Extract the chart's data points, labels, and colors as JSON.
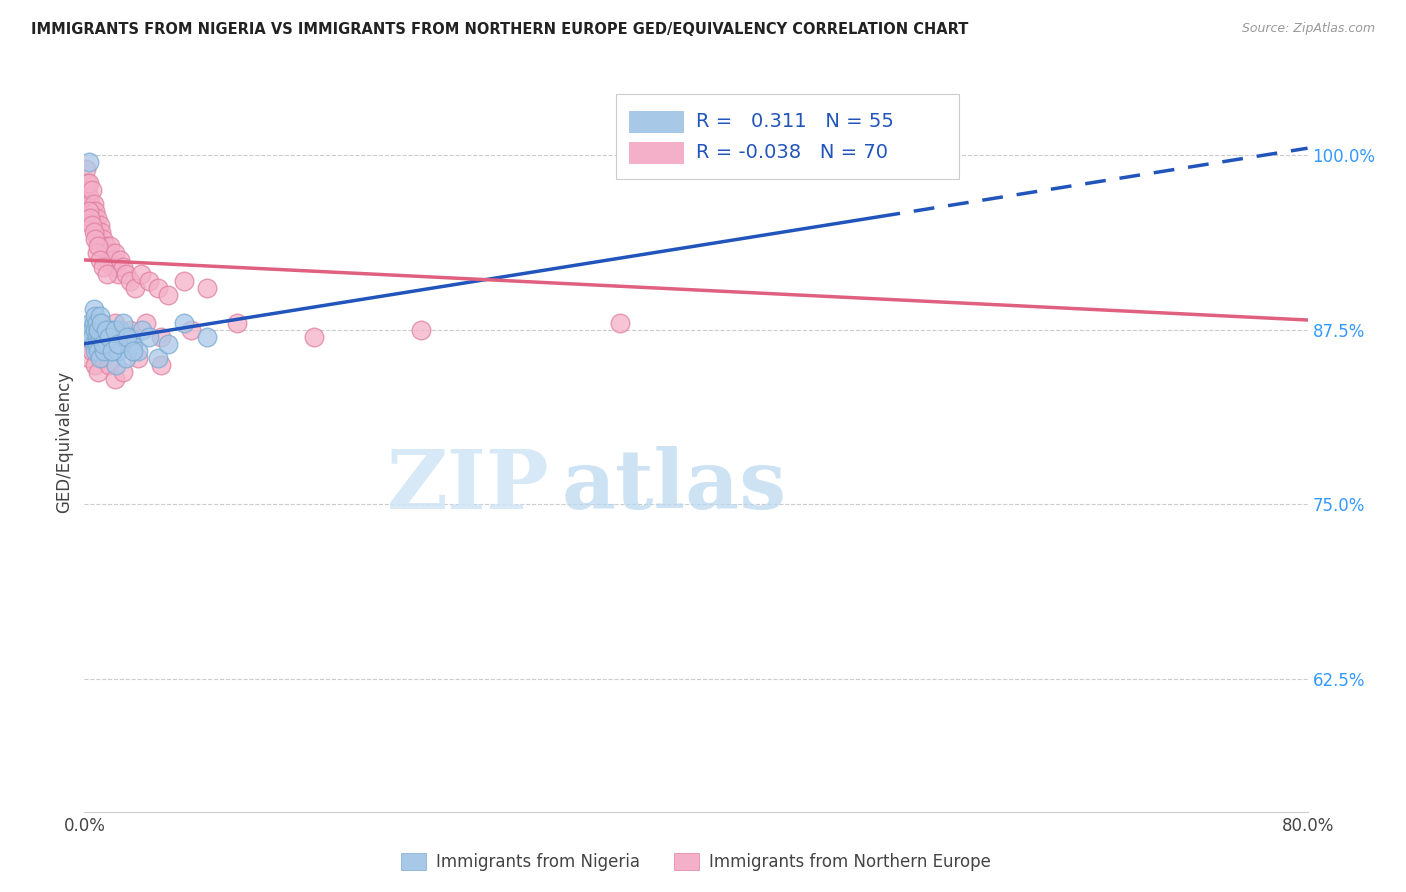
{
  "title": "IMMIGRANTS FROM NIGERIA VS IMMIGRANTS FROM NORTHERN EUROPE GED/EQUIVALENCY CORRELATION CHART",
  "source": "Source: ZipAtlas.com",
  "ylabel": "GED/Equivalency",
  "x_min": 0.0,
  "x_max": 0.8,
  "y_min": 0.53,
  "y_max": 1.06,
  "y_ticks": [
    0.625,
    0.75,
    0.875,
    1.0
  ],
  "y_tick_labels": [
    "62.5%",
    "75.0%",
    "87.5%",
    "100.0%"
  ],
  "nigeria_R": 0.311,
  "nigeria_N": 55,
  "northern_europe_R": -0.038,
  "northern_europe_N": 70,
  "nigeria_color": "#a8c8e8",
  "nigeria_edge_color": "#7aaad0",
  "northern_europe_color": "#f4b0c8",
  "northern_europe_edge_color": "#e080a0",
  "nigeria_trend_color": "#2255bb",
  "northern_europe_trend_color": "#e06080",
  "legend_label_nigeria": "Immigrants from Nigeria",
  "legend_label_northern": "Immigrants from Northern Europe",
  "nigeria_trend_x0": 0.0,
  "nigeria_trend_y0": 0.865,
  "nigeria_trend_x1": 0.8,
  "nigeria_trend_y1": 1.005,
  "northern_trend_x0": 0.0,
  "northern_trend_y0": 0.925,
  "northern_trend_x1": 0.8,
  "northern_trend_y1": 0.882,
  "nigeria_x": [
    0.002,
    0.003,
    0.004,
    0.005,
    0.005,
    0.006,
    0.006,
    0.007,
    0.007,
    0.008,
    0.008,
    0.009,
    0.009,
    0.01,
    0.01,
    0.011,
    0.012,
    0.013,
    0.014,
    0.015,
    0.016,
    0.017,
    0.018,
    0.019,
    0.02,
    0.021,
    0.022,
    0.023,
    0.024,
    0.025,
    0.027,
    0.03,
    0.032,
    0.035,
    0.038,
    0.042,
    0.048,
    0.055,
    0.065,
    0.08,
    0.006,
    0.007,
    0.008,
    0.009,
    0.01,
    0.011,
    0.012,
    0.014,
    0.016,
    0.018,
    0.02,
    0.022,
    0.025,
    0.028,
    0.032
  ],
  "nigeria_y": [
    0.87,
    0.995,
    0.88,
    0.875,
    0.87,
    0.865,
    0.88,
    0.875,
    0.86,
    0.87,
    0.865,
    0.875,
    0.86,
    0.87,
    0.855,
    0.88,
    0.87,
    0.86,
    0.875,
    0.865,
    0.87,
    0.875,
    0.865,
    0.86,
    0.875,
    0.85,
    0.86,
    0.875,
    0.865,
    0.87,
    0.855,
    0.87,
    0.865,
    0.86,
    0.875,
    0.87,
    0.855,
    0.865,
    0.88,
    0.87,
    0.89,
    0.885,
    0.88,
    0.875,
    0.885,
    0.88,
    0.865,
    0.875,
    0.87,
    0.86,
    0.875,
    0.865,
    0.88,
    0.87,
    0.86
  ],
  "northern_x": [
    0.001,
    0.002,
    0.002,
    0.003,
    0.003,
    0.004,
    0.005,
    0.005,
    0.006,
    0.006,
    0.007,
    0.007,
    0.008,
    0.008,
    0.009,
    0.01,
    0.01,
    0.011,
    0.012,
    0.013,
    0.014,
    0.015,
    0.016,
    0.017,
    0.018,
    0.019,
    0.02,
    0.021,
    0.022,
    0.023,
    0.025,
    0.027,
    0.03,
    0.033,
    0.037,
    0.042,
    0.048,
    0.055,
    0.065,
    0.08,
    0.003,
    0.004,
    0.005,
    0.006,
    0.007,
    0.008,
    0.009,
    0.01,
    0.012,
    0.015,
    0.02,
    0.025,
    0.03,
    0.04,
    0.05,
    0.07,
    0.1,
    0.15,
    0.22,
    0.35,
    0.003,
    0.005,
    0.007,
    0.009,
    0.012,
    0.016,
    0.02,
    0.025,
    0.035,
    0.05
  ],
  "northern_y": [
    0.99,
    0.98,
    0.975,
    0.97,
    0.98,
    0.965,
    0.975,
    0.96,
    0.955,
    0.965,
    0.96,
    0.95,
    0.945,
    0.955,
    0.94,
    0.95,
    0.935,
    0.945,
    0.94,
    0.93,
    0.935,
    0.925,
    0.93,
    0.935,
    0.92,
    0.925,
    0.93,
    0.92,
    0.915,
    0.925,
    0.92,
    0.915,
    0.91,
    0.905,
    0.915,
    0.91,
    0.905,
    0.9,
    0.91,
    0.905,
    0.96,
    0.955,
    0.95,
    0.945,
    0.94,
    0.93,
    0.935,
    0.925,
    0.92,
    0.915,
    0.88,
    0.87,
    0.875,
    0.88,
    0.87,
    0.875,
    0.88,
    0.87,
    0.875,
    0.88,
    0.855,
    0.86,
    0.85,
    0.845,
    0.855,
    0.85,
    0.84,
    0.845,
    0.855,
    0.85
  ]
}
